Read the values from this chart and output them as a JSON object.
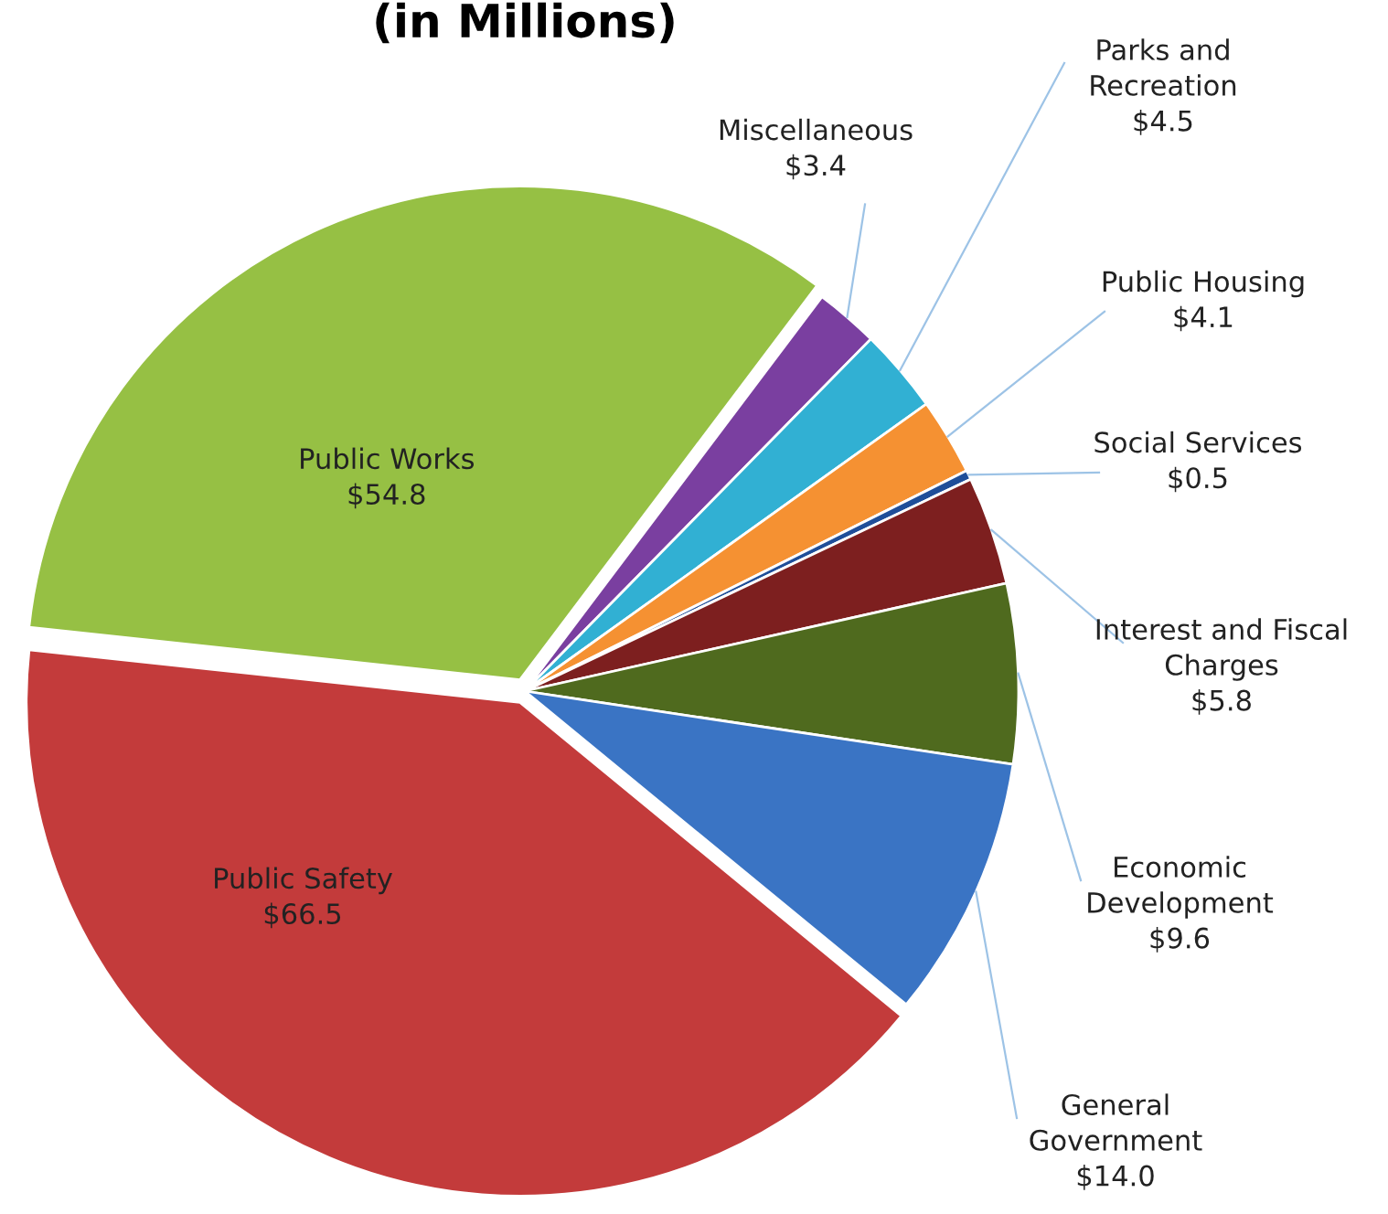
{
  "chart_data": {
    "type": "pie",
    "title": "(in Millions)",
    "categories": [
      "Miscellaneous",
      "Parks and\nRecreation",
      "Public Housing",
      "Social Services",
      "Interest and Fiscal\nCharges",
      "Economic\nDevelopment",
      "General\nGovernment",
      "Public Safety",
      "Public Works"
    ],
    "values": [
      3.4,
      4.5,
      4.1,
      0.5,
      5.8,
      9.6,
      14.0,
      66.5,
      54.8
    ],
    "value_labels": [
      "$3.4",
      "$4.5",
      "$4.1",
      "$0.5",
      "$5.8",
      "$9.6",
      "$14.0",
      "$66.5",
      "$54.8"
    ],
    "colors": [
      "#7a3fa0",
      "#31b0d3",
      "#f59132",
      "#1f4e99",
      "#7d1f1f",
      "#4f6a1e",
      "#3a74c4",
      "#c33b3b",
      "#96c044"
    ]
  }
}
